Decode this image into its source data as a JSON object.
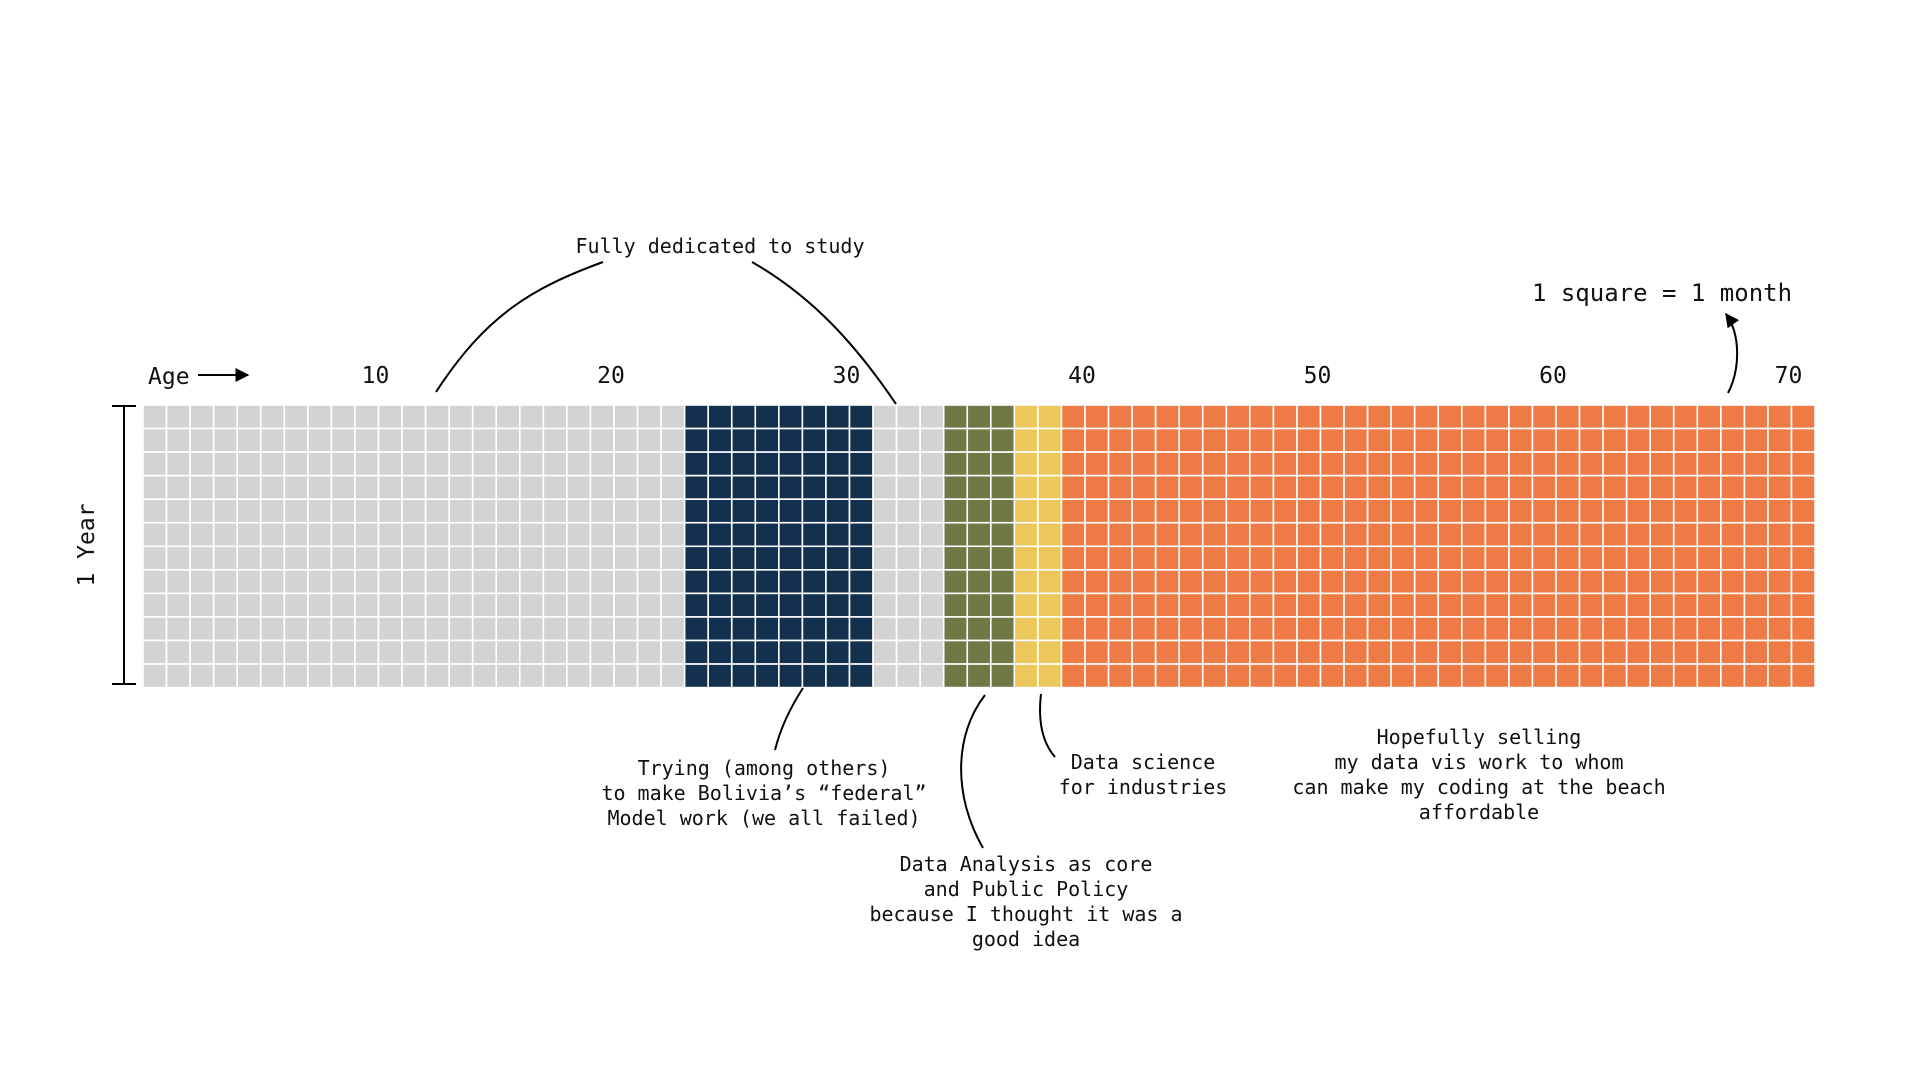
{
  "axis": {
    "age_label": "Age",
    "ticks": [
      "10",
      "20",
      "30",
      "40",
      "50",
      "60",
      "70"
    ],
    "side_label": "1 Year"
  },
  "grid": {
    "rows": 12,
    "start_age": 0,
    "end_age": 71,
    "segments": [
      {
        "from_age": 0,
        "to_age": 23,
        "color": "#d3d3d3"
      },
      {
        "from_age": 23,
        "to_age": 31,
        "color": "#13304f"
      },
      {
        "from_age": 31,
        "to_age": 34,
        "color": "#d3d3d3"
      },
      {
        "from_age": 34,
        "to_age": 37,
        "color": "#717745"
      },
      {
        "from_age": 37,
        "to_age": 39,
        "color": "#ecc85c"
      },
      {
        "from_age": 39,
        "to_age": 71,
        "color": "#ee7b46"
      }
    ],
    "grid_line_color": "#ffffff"
  },
  "legend": {
    "text": "1 square = 1 month"
  },
  "annotations": {
    "study": {
      "lines": [
        "Fully dedicated to study"
      ]
    },
    "federal": {
      "lines": [
        "Trying (among others)",
        "to make Bolivia’s “federal”",
        "Model work (we all failed)"
      ]
    },
    "analysis": {
      "lines": [
        "Data Analysis as core",
        "and Public Policy",
        "because I thought it was a",
        "good idea"
      ]
    },
    "science": {
      "lines": [
        "Data science",
        "for industries"
      ]
    },
    "future": {
      "lines": [
        "Hopefully selling",
        "my data vis work to whom",
        "can make my coding at the beach",
        "affordable"
      ]
    }
  }
}
